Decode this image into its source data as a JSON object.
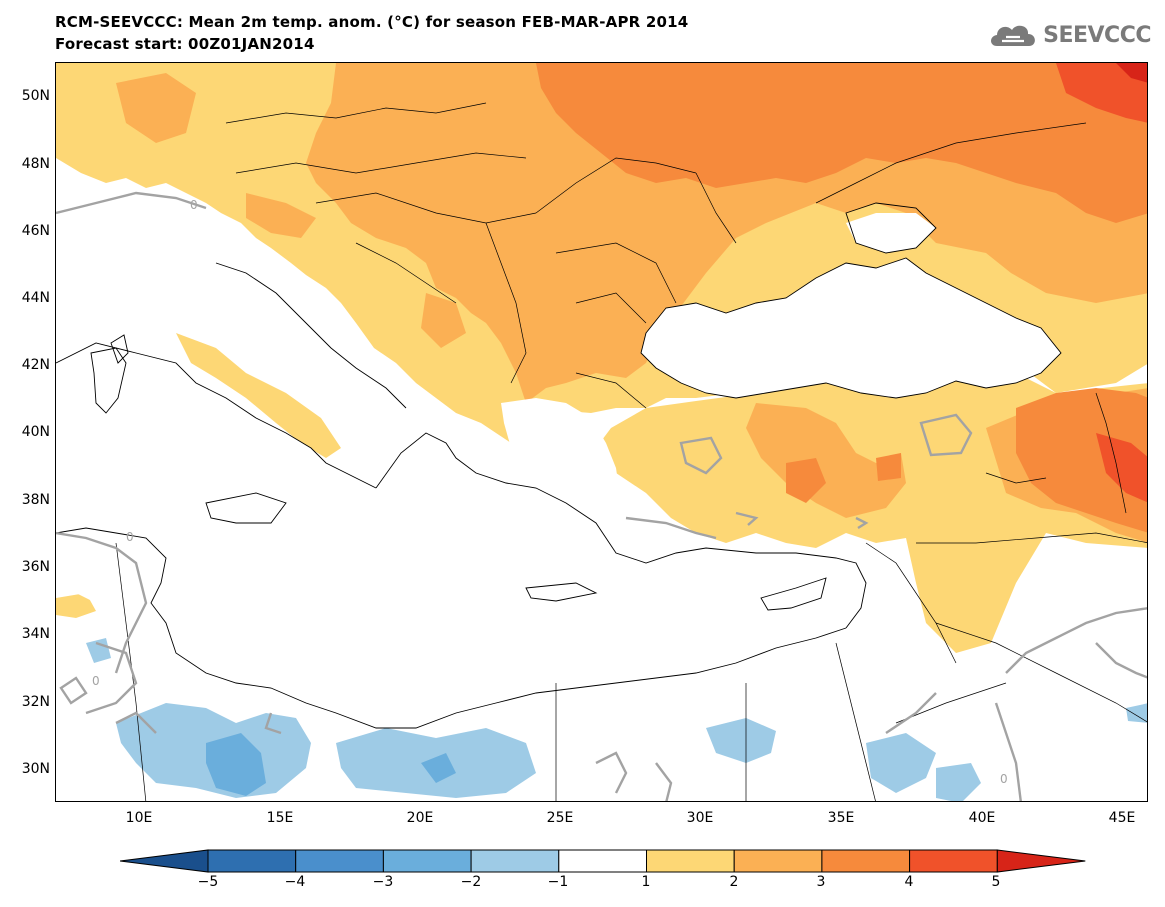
{
  "title": {
    "line1": "RCM-SEEVCCC: Mean 2m temp. anom. (°C) for season FEB-MAR-APR 2014",
    "line2": "Forecast start: 00Z01JAN2014"
  },
  "logo": {
    "text": "SEEVCCC",
    "icon": "cloud-icon"
  },
  "map": {
    "lat_labels": [
      "50N",
      "48N",
      "46N",
      "44N",
      "42N",
      "40N",
      "38N",
      "36N",
      "34N",
      "32N",
      "30N"
    ],
    "lon_labels": [
      "10E",
      "15E",
      "20E",
      "25E",
      "30E",
      "35E",
      "40E",
      "45E"
    ],
    "contour_label": "0"
  },
  "legend": {
    "ticks": [
      "−5",
      "−4",
      "−3",
      "−2",
      "−1",
      "1",
      "2",
      "3",
      "4",
      "5"
    ],
    "colors": [
      "#1a4f8c",
      "#2e6fb0",
      "#4a8fcc",
      "#6aaedc",
      "#9ecbe6",
      "#ffffff",
      "#fdd775",
      "#fbb054",
      "#f68a3c",
      "#f0522a",
      "#d72418"
    ]
  }
}
